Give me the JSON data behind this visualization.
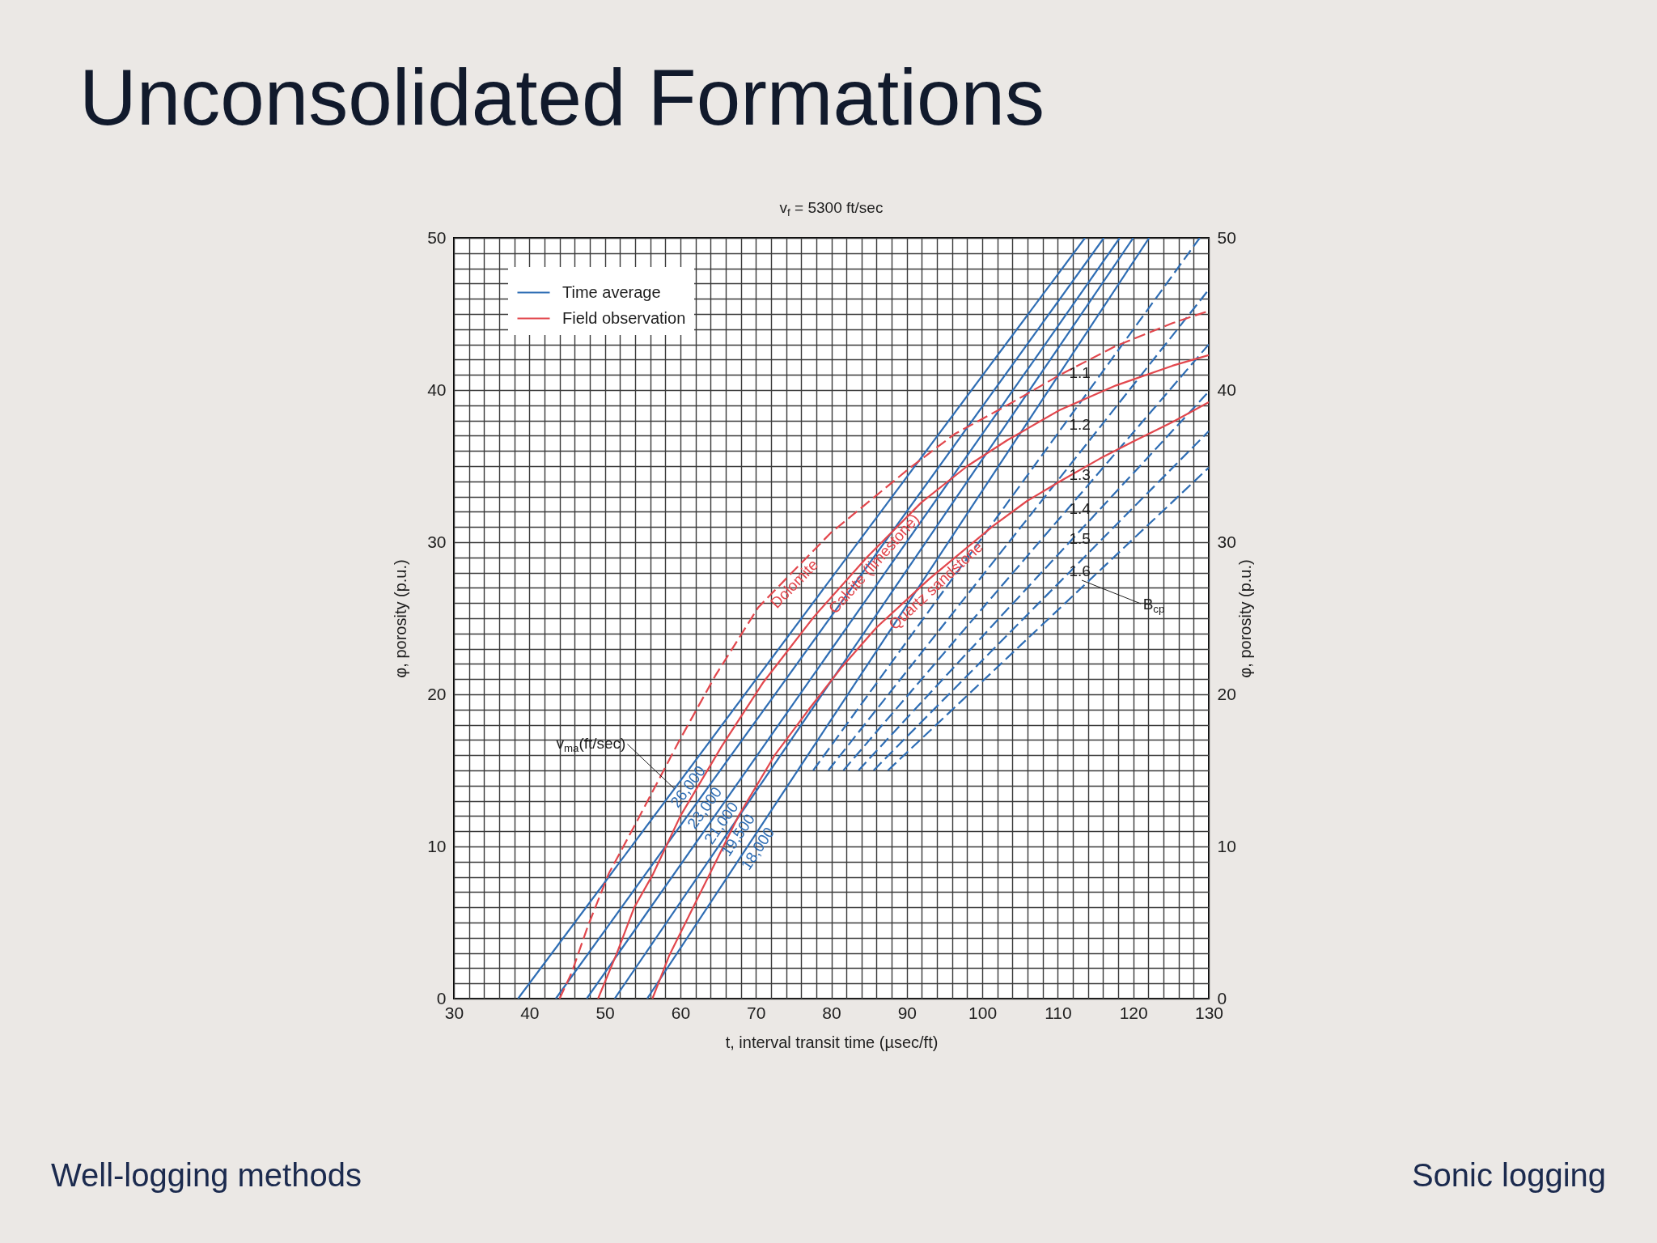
{
  "chart_data": {
    "type": "line",
    "title": "Unconsolidated Formations",
    "subtitle": "v$_{f}$ = 5300 ft/sec",
    "xlabel": "t, interval transit time (µsec/ft)",
    "ylabel": "φ, porosity (p.u.)",
    "y2label": "φ, porosity (p.u.)",
    "xlim": [
      30,
      130
    ],
    "ylim": [
      0,
      50
    ],
    "y2lim": [
      0,
      50
    ],
    "xticks": [
      30,
      {
        "value": 32,
        "label": null
      },
      {
        "value": 34,
        "label": null
      },
      {
        "value": 36,
        "label": null
      },
      {
        "value": 38,
        "label": null
      },
      40,
      {
        "value": 42,
        "label": null
      },
      {
        "value": 44,
        "label": null
      },
      {
        "value": 46,
        "label": null
      },
      {
        "value": 48,
        "label": null
      },
      50,
      {
        "value": 52,
        "label": null
      },
      {
        "value": 54,
        "label": null
      },
      {
        "value": 56,
        "label": null
      },
      {
        "value": 58,
        "label": null
      },
      60,
      {
        "value": 62,
        "label": null
      },
      {
        "value": 64,
        "label": null
      },
      {
        "value": 66,
        "label": null
      },
      {
        "value": 68,
        "label": null
      },
      70,
      {
        "value": 72,
        "label": null
      },
      {
        "value": 74,
        "label": null
      },
      {
        "value": 76,
        "label": null
      },
      {
        "value": 78,
        "label": null
      },
      80,
      {
        "value": 82,
        "label": null
      },
      {
        "value": 84,
        "label": null
      },
      {
        "value": 86,
        "label": null
      },
      {
        "value": 88,
        "label": null
      },
      90,
      {
        "value": 92,
        "label": null
      },
      {
        "value": 94,
        "label": null
      },
      {
        "value": 96,
        "label": null
      },
      {
        "value": 98,
        "label": null
      },
      100,
      {
        "value": 102,
        "label": null
      },
      {
        "value": 104,
        "label": null
      },
      {
        "value": 106,
        "label": null
      },
      {
        "value": 108,
        "label": null
      },
      110,
      {
        "value": 112,
        "label": null
      },
      {
        "value": 114,
        "label": null
      },
      {
        "value": 116,
        "label": null
      },
      {
        "value": 118,
        "label": null
      },
      120,
      {
        "value": 122,
        "label": null
      },
      {
        "value": 124,
        "label": null
      },
      {
        "value": 126,
        "label": null
      },
      {
        "value": 128,
        "label": null
      },
      130
    ],
    "yticks": [
      0,
      {
        "value": 1,
        "label": null
      },
      {
        "value": 2,
        "label": null
      },
      {
        "value": 3,
        "label": null
      },
      {
        "value": 4,
        "label": null
      },
      {
        "value": 5,
        "label": null
      },
      {
        "value": 6,
        "label": null
      },
      {
        "value": 7,
        "label": null
      },
      {
        "value": 8,
        "label": null
      },
      {
        "value": 9,
        "label": null
      },
      10,
      {
        "value": 11,
        "label": null
      },
      {
        "value": 12,
        "label": null
      },
      {
        "value": 13,
        "label": null
      },
      {
        "value": 14,
        "label": null
      },
      {
        "value": 15,
        "label": null
      },
      {
        "value": 16,
        "label": null
      },
      {
        "value": 17,
        "label": null
      },
      {
        "value": 18,
        "label": null
      },
      {
        "value": 19,
        "label": null
      },
      20,
      {
        "value": 21,
        "label": null
      },
      {
        "value": 22,
        "label": null
      },
      {
        "value": 23,
        "label": null
      },
      {
        "value": 24,
        "label": null
      },
      {
        "value": 25,
        "label": null
      },
      {
        "value": 26,
        "label": null
      },
      {
        "value": 27,
        "label": null
      },
      {
        "value": 28,
        "label": null
      },
      {
        "value": 29,
        "label": null
      },
      30,
      {
        "value": 31,
        "label": null
      },
      {
        "value": 32,
        "label": null
      },
      {
        "value": 33,
        "label": null
      },
      {
        "value": 34,
        "label": null
      },
      {
        "value": 35,
        "label": null
      },
      {
        "value": 36,
        "label": null
      },
      {
        "value": 37,
        "label": null
      },
      {
        "value": 38,
        "label": null
      },
      {
        "value": 39,
        "label": null
      },
      40,
      {
        "value": 41,
        "label": null
      },
      {
        "value": 42,
        "label": null
      },
      {
        "value": 43,
        "label": null
      },
      {
        "value": 44,
        "label": null
      },
      {
        "value": 45,
        "label": null
      },
      {
        "value": 46,
        "label": null
      },
      {
        "value": 47,
        "label": null
      },
      {
        "value": 48,
        "label": null
      },
      {
        "value": 49,
        "label": null
      },
      50
    ],
    "y2ticks": [
      0,
      10,
      20,
      30,
      40,
      50
    ],
    "grid": true,
    "legend": "top left",
    "series": [
      {
        "name": "Time average",
        "color": "#2e6db4",
        "x": [
          38.5,
          113.6
        ],
        "values": [
          0,
          50
        ]
      },
      {
        "color": "#2e6db4",
        "x": [
          43.5,
          116.1
        ],
        "values": [
          0,
          50
        ]
      },
      {
        "color": "#2e6db4",
        "x": [
          47.6,
          118.2
        ],
        "values": [
          0,
          50
        ]
      },
      {
        "color": "#2e6db4",
        "x": [
          51.3,
          120.0
        ],
        "values": [
          0,
          50
        ]
      },
      {
        "color": "#2e6db4",
        "x": [
          55.6,
          122.1
        ],
        "values": [
          0,
          50
        ]
      },
      {
        "color": "#2e6db4",
        "line_style": "dashed",
        "x": [
          77.6,
          128.8
        ],
        "values": [
          15,
          50
        ]
      },
      {
        "color": "#2e6db4",
        "line_style": "dashed",
        "x": [
          79.6,
          130
        ],
        "values": [
          15,
          46.6
        ]
      },
      {
        "color": "#2e6db4",
        "line_style": "dashed",
        "x": [
          81.6,
          130
        ],
        "values": [
          15,
          43.0
        ]
      },
      {
        "color": "#2e6db4",
        "line_style": "dashed",
        "x": [
          83.6,
          130
        ],
        "values": [
          15,
          39.9
        ]
      },
      {
        "color": "#2e6db4",
        "line_style": "dashed",
        "x": [
          85.6,
          130
        ],
        "values": [
          15,
          37.3
        ]
      },
      {
        "color": "#2e6db4",
        "line_style": "dashed",
        "x": [
          87.5,
          130
        ],
        "values": [
          15,
          34.9
        ]
      },
      {
        "color": "#e2474d",
        "line_style": "dashed",
        "x": [
          44.0,
          45.6,
          47.7,
          50.5,
          54.4,
          59.8,
          64.6,
          70.3,
          74.2,
          79.9,
          90.2,
          96.3,
          103.3,
          110.3,
          117.7,
          125.2,
          130
        ],
        "values": [
          0,
          1.7,
          4.7,
          8.2,
          11.8,
          16.9,
          21.2,
          25.7,
          27.7,
          30.6,
          34.8,
          37.1,
          39.0,
          41.0,
          42.9,
          44.4,
          45.2
        ]
      },
      {
        "name": "Field observation",
        "color": "#e2474d",
        "x": [
          49.1,
          51.6,
          53.9,
          56.4,
          60.0,
          65.5,
          71.0,
          77.7,
          84.7,
          91.9,
          98.0,
          103.3,
          110.3,
          117.7,
          125.2,
          130
        ],
        "values": [
          0,
          3.0,
          6.0,
          8.2,
          12.0,
          16.6,
          20.8,
          25.1,
          29.0,
          32.6,
          35.0,
          36.7,
          38.7,
          40.3,
          41.6,
          42.3
        ]
      },
      {
        "color": "#e2474d",
        "x": [
          56.3,
          58.5,
          61.8,
          67.7,
          72.5,
          77.0,
          81.4,
          86.0,
          93.0,
          101.5,
          105.9,
          110.3,
          115.6,
          119.9,
          125.2,
          130
        ],
        "values": [
          0,
          2.8,
          6.1,
          12.0,
          16.0,
          19.0,
          21.8,
          24.4,
          27.6,
          31.1,
          32.7,
          34.0,
          35.5,
          36.6,
          37.9,
          39.2
        ]
      }
    ],
    "annotations": [
      {
        "text": "v$_{ma}$(ft/sec)",
        "x": 59.2,
        "y": 13.8
      },
      {
        "text": "26,000",
        "x": 60.0,
        "y": 14.3
      },
      {
        "text": "23,000",
        "x": 62.2,
        "y": 12.9
      },
      {
        "text": "21,000",
        "x": 64.4,
        "y": 11.9
      },
      {
        "text": "19,500",
        "x": 66.6,
        "y": 11.1
      },
      {
        "text": "18,000",
        "x": 69.2,
        "y": 10.2
      },
      {
        "text": "Dolomite",
        "x": 74.2,
        "y": 27.7
      },
      {
        "text": "Calcite (limestone)",
        "x": 84.7,
        "y": 29.0
      },
      {
        "text": "Quartz sandstone",
        "x": 93.0,
        "y": 27.6
      },
      {
        "text": "1.1",
        "x": 115.3,
        "y": 41.1
      },
      {
        "text": "1.2",
        "x": 115.3,
        "y": 37.7
      },
      {
        "text": "1.3",
        "x": 115.3,
        "y": 34.4
      },
      {
        "text": "1.4",
        "x": 115.3,
        "y": 32.2
      },
      {
        "text": "1.5",
        "x": 115.3,
        "y": 30.2
      },
      {
        "text": "1.6",
        "x": 115.3,
        "y": 28.1
      },
      "B$_{cp}$",
      "Well-logging methods",
      "Sonic logging"
    ]
  }
}
